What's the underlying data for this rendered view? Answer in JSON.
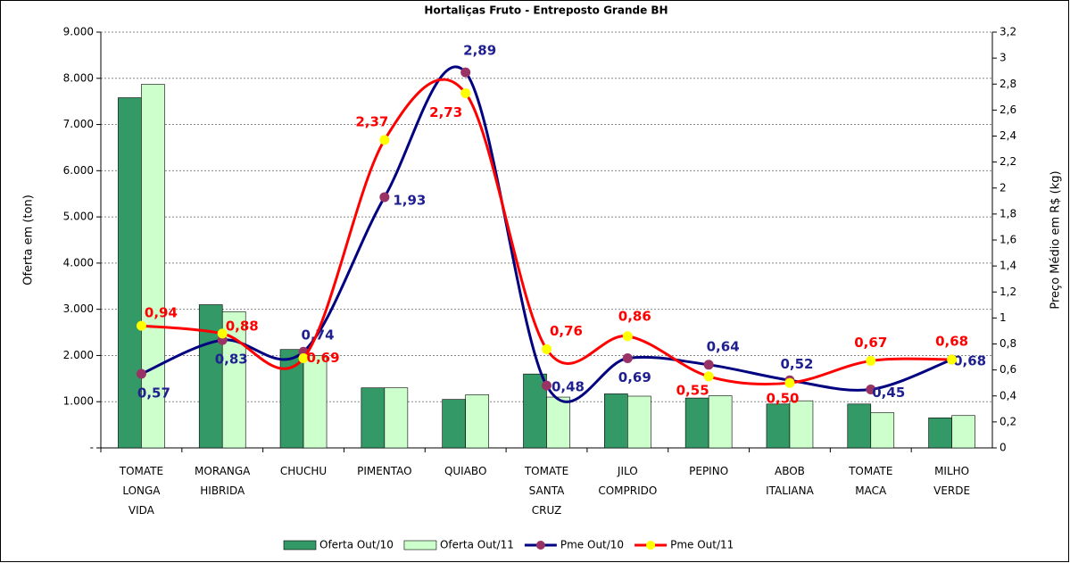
{
  "chart_data": {
    "type": "bar-line",
    "title": "Hortaliças Fruto - Entreposto Grande BH",
    "y_label": "Oferta em (ton)",
    "y2_label": "Preço Médio em R$ (kg)",
    "categories": [
      "TOMATE\nLONGA\nVIDA",
      "MORANGA\nHIBRIDA",
      "CHUCHU",
      "PIMENTAO",
      "QUIABO",
      "TOMATE\nSANTA\nCRUZ",
      "JILO\nCOMPRIDO",
      "PEPINO",
      "ABOB\nITALIANA",
      "TOMATE\nMACA",
      "MILHO\nVERDE"
    ],
    "series": [
      {
        "name": "Oferta Out/10",
        "type": "bar",
        "color": "#339966",
        "values": [
          7580,
          3100,
          2130,
          1300,
          1050,
          1600,
          1170,
          1080,
          950,
          950,
          650
        ]
      },
      {
        "name": "Oferta Out/11",
        "type": "bar",
        "color": "#ccffcc",
        "values": [
          7870,
          2950,
          2000,
          1300,
          1150,
          1100,
          1120,
          1130,
          1020,
          760,
          700
        ]
      },
      {
        "name": "Pme Out/10",
        "type": "line",
        "axis": "y2",
        "color": "#000080",
        "marker_color": "#993366",
        "label_color": "#1f1f8f",
        "values": [
          0.57,
          0.83,
          0.74,
          1.93,
          2.89,
          0.48,
          0.69,
          0.64,
          0.52,
          0.45,
          0.68
        ],
        "value_labels": [
          "0,57",
          "0,83",
          "0,74",
          "1,93",
          "2,89",
          "0,48",
          "0,69",
          "0,64",
          "0,52",
          "0,45",
          "0,68"
        ]
      },
      {
        "name": "Pme Out/11",
        "type": "line",
        "axis": "y2",
        "color": "#ff0000",
        "marker_color": "#ffff00",
        "label_color": "#ff0000",
        "values": [
          0.94,
          0.88,
          0.69,
          2.37,
          2.73,
          0.76,
          0.86,
          0.55,
          0.5,
          0.67,
          0.68
        ],
        "value_labels": [
          "0,94",
          "0,88",
          "0,69",
          "2,37",
          "2,73",
          "0,76",
          "0,86",
          "0,55",
          "0,50",
          "0,67",
          "0,68"
        ]
      }
    ],
    "ylim": [
      0,
      9000
    ],
    "yticks": [
      {
        "value": 0,
        "label": "-"
      },
      {
        "value": 1000,
        "label": "1.000"
      },
      {
        "value": 2000,
        "label": "2.000"
      },
      {
        "value": 3000,
        "label": "3.000"
      },
      {
        "value": 4000,
        "label": "4.000"
      },
      {
        "value": 5000,
        "label": "5.000"
      },
      {
        "value": 6000,
        "label": "6.000"
      },
      {
        "value": 7000,
        "label": "7.000"
      },
      {
        "value": 8000,
        "label": "8.000"
      },
      {
        "value": 9000,
        "label": "9.000"
      }
    ],
    "y2lim": [
      0,
      3.2
    ],
    "y2ticks": [
      0,
      {
        "value": 0.2,
        "label": "0,2"
      },
      {
        "value": 0.4,
        "label": "0,4"
      },
      {
        "value": 0.6,
        "label": "0,6"
      },
      {
        "value": 0.8,
        "label": "0,8"
      },
      1,
      {
        "value": 1.2,
        "label": "1,2"
      },
      {
        "value": 1.4,
        "label": "1,4"
      },
      {
        "value": 1.6,
        "label": "1,6"
      },
      {
        "value": 1.8,
        "label": "1,8"
      },
      2,
      {
        "value": 2.2,
        "label": "2,2"
      },
      {
        "value": 2.4,
        "label": "2,4"
      },
      {
        "value": 2.6,
        "label": "2,6"
      },
      {
        "value": 2.8,
        "label": "2,8"
      },
      3,
      {
        "value": 3.2,
        "label": "3,2"
      }
    ],
    "grid": true,
    "legend": "bottom"
  }
}
